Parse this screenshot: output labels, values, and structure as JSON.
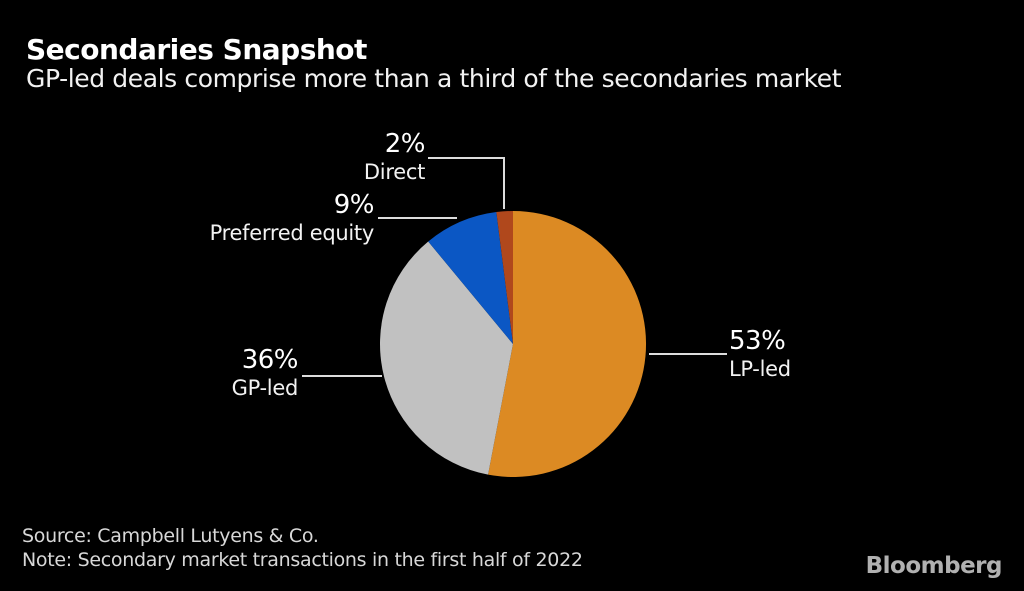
{
  "header": {
    "title": "Secondaries Snapshot",
    "subtitle": "GP-led deals comprise more than a third of the secondaries market"
  },
  "chart_data": {
    "type": "pie",
    "title": "Secondaries Snapshot",
    "subtitle": "GP-led deals comprise more than a third of the secondaries market",
    "unit": "percent",
    "start_angle_deg": 0,
    "direction": "clockwise",
    "slices": [
      {
        "label": "LP-led",
        "value": 53,
        "color": "#DC8A23"
      },
      {
        "label": "GP-led",
        "value": 36,
        "color": "#C1C1C1"
      },
      {
        "label": "Preferred equity",
        "value": 9,
        "color": "#0B57C4"
      },
      {
        "label": "Direct",
        "value": 2,
        "color": "#B0481C"
      }
    ],
    "legend": "callout-labels",
    "source": "Campbell Lutyens & Co.",
    "note": "Secondary market transactions in the first half of 2022"
  },
  "callouts": {
    "lp_led": {
      "value_label": "53%",
      "name": "LP-led"
    },
    "gp_led": {
      "value_label": "36%",
      "name": "GP-led"
    },
    "preferred_equity": {
      "value_label": "9%",
      "name": "Preferred equity"
    },
    "direct": {
      "value_label": "2%",
      "name": "Direct"
    }
  },
  "footer": {
    "source": "Source: Campbell Lutyens & Co.",
    "note": "Note: Secondary market transactions in the first half of 2022",
    "brand": "Bloomberg"
  },
  "colors": {
    "background": "#000000",
    "title_text": "#FFFFFF",
    "label_text": "#F2F2F2",
    "leader_line": "#DCDCDC",
    "footer_text": "#D8D8D8",
    "brand_text": "#B1B1B1"
  }
}
